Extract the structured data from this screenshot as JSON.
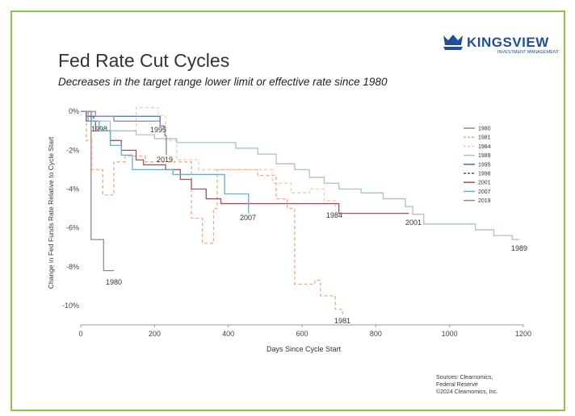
{
  "logo": {
    "name": "KINGSVIEW",
    "tagline": "INVESTMENT MANAGEMENT"
  },
  "sources": [
    "Sources: Clearnomics,",
    "Federal Reserve",
    "©2024 Clearnomics, Inc."
  ],
  "chart_data": {
    "type": "step",
    "title": "Fed Rate Cut Cycles",
    "subtitle": "Decreases in the target range lower limit or effective rate since 1980",
    "x_label": "Days Since Cycle Start",
    "y_label": "Change in Fed Funds Rate Relative to Cycle Start",
    "xlim": [
      0,
      1200
    ],
    "xticks": [
      0,
      200,
      400,
      600,
      800,
      1000,
      1200
    ],
    "ylim": [
      -11,
      0.3
    ],
    "yticks": [
      {
        "value": 0,
        "label": "0%"
      },
      {
        "value": -2,
        "label": "-2%"
      },
      {
        "value": -4,
        "label": "-4%"
      },
      {
        "value": -6,
        "label": "-6%"
      },
      {
        "value": -8,
        "label": "-8%"
      },
      {
        "value": -10,
        "label": "-10%"
      }
    ],
    "grid": false,
    "series": [
      {
        "name": "1980",
        "color": "#8c8c8c",
        "dashed": false,
        "x": [
          0,
          28,
          62,
          90
        ],
        "values": [
          0,
          -6.6,
          -8.2,
          -8.2
        ]
      },
      {
        "name": "1981",
        "color": "#f2a983",
        "dashed": true,
        "x": [
          0,
          15,
          30,
          60,
          90,
          120,
          175,
          270,
          300,
          330,
          360,
          370,
          450,
          480,
          530,
          560,
          580,
          635,
          650,
          690,
          710
        ],
        "values": [
          0,
          -1.5,
          -3.0,
          -4.3,
          -2.6,
          -2.3,
          -2.6,
          -2.6,
          -5.5,
          -6.8,
          -5.0,
          -3.0,
          -3.0,
          -3.3,
          -4.5,
          -5.0,
          -8.9,
          -8.7,
          -9.5,
          -10.2,
          -10.5
        ]
      },
      {
        "name": "1984",
        "color": "#f7c9ab",
        "dashed": true,
        "x": [
          0,
          20,
          50,
          150,
          210,
          230,
          260,
          320,
          450,
          520,
          570,
          620,
          660,
          690
        ],
        "values": [
          0,
          -0.5,
          -1.0,
          0.2,
          -0.2,
          -1.5,
          -2.5,
          -3.0,
          -3.0,
          -3.7,
          -4.2,
          -4.0,
          -4.6,
          -5.1
        ]
      },
      {
        "name": "1989",
        "color": "#a9c6b9",
        "dashed": false,
        "x": [
          0,
          30,
          80,
          150,
          200,
          260,
          400,
          420,
          480,
          530,
          580,
          620,
          660,
          700,
          760,
          820,
          880,
          900,
          930,
          1040,
          1070,
          1120,
          1170,
          1190
        ],
        "values": [
          0,
          -0.5,
          -1.0,
          -1.2,
          -1.4,
          -1.6,
          -1.6,
          -1.9,
          -2.2,
          -2.7,
          -3.0,
          -3.4,
          -3.7,
          -4.0,
          -4.2,
          -4.5,
          -4.9,
          -5.3,
          -5.8,
          -5.8,
          -6.1,
          -6.4,
          -6.6,
          -6.6
        ]
      },
      {
        "name": "1995",
        "color": "#3a78b8",
        "dashed": false,
        "x": [
          0,
          15,
          200,
          215,
          225
        ],
        "values": [
          0,
          -0.25,
          -0.25,
          -0.75,
          -0.75
        ]
      },
      {
        "name": "1998",
        "color": "#555555",
        "dashed": true,
        "x": [
          0,
          20,
          35,
          50
        ],
        "values": [
          0,
          -0.25,
          -0.5,
          -0.75
        ]
      },
      {
        "name": "2001",
        "color": "#a2535f",
        "dashed": false,
        "x": [
          0,
          15,
          40,
          80,
          110,
          150,
          170,
          230,
          270,
          300,
          340,
          380,
          670,
          700,
          890
        ],
        "values": [
          0,
          -0.5,
          -1.0,
          -1.5,
          -2.0,
          -2.5,
          -2.75,
          -3.0,
          -3.5,
          -4.0,
          -4.5,
          -4.75,
          -4.75,
          -5.25,
          -5.25
        ]
      },
      {
        "name": "2007",
        "color": "#5bb4d3",
        "dashed": false,
        "x": [
          0,
          20,
          50,
          80,
          110,
          140,
          220,
          250,
          360,
          390,
          440,
          455
        ],
        "values": [
          0,
          -0.5,
          -1.0,
          -1.75,
          -2.25,
          -3.0,
          -3.0,
          -3.25,
          -3.25,
          -4.25,
          -4.25,
          -5.25
        ]
      },
      {
        "name": "2019",
        "color": "#8a8aa6",
        "dashed": false,
        "x": [
          0,
          40,
          90,
          215,
          228,
          232
        ],
        "values": [
          0,
          -0.25,
          -0.5,
          -0.75,
          -1.25,
          -2.25
        ]
      }
    ]
  }
}
